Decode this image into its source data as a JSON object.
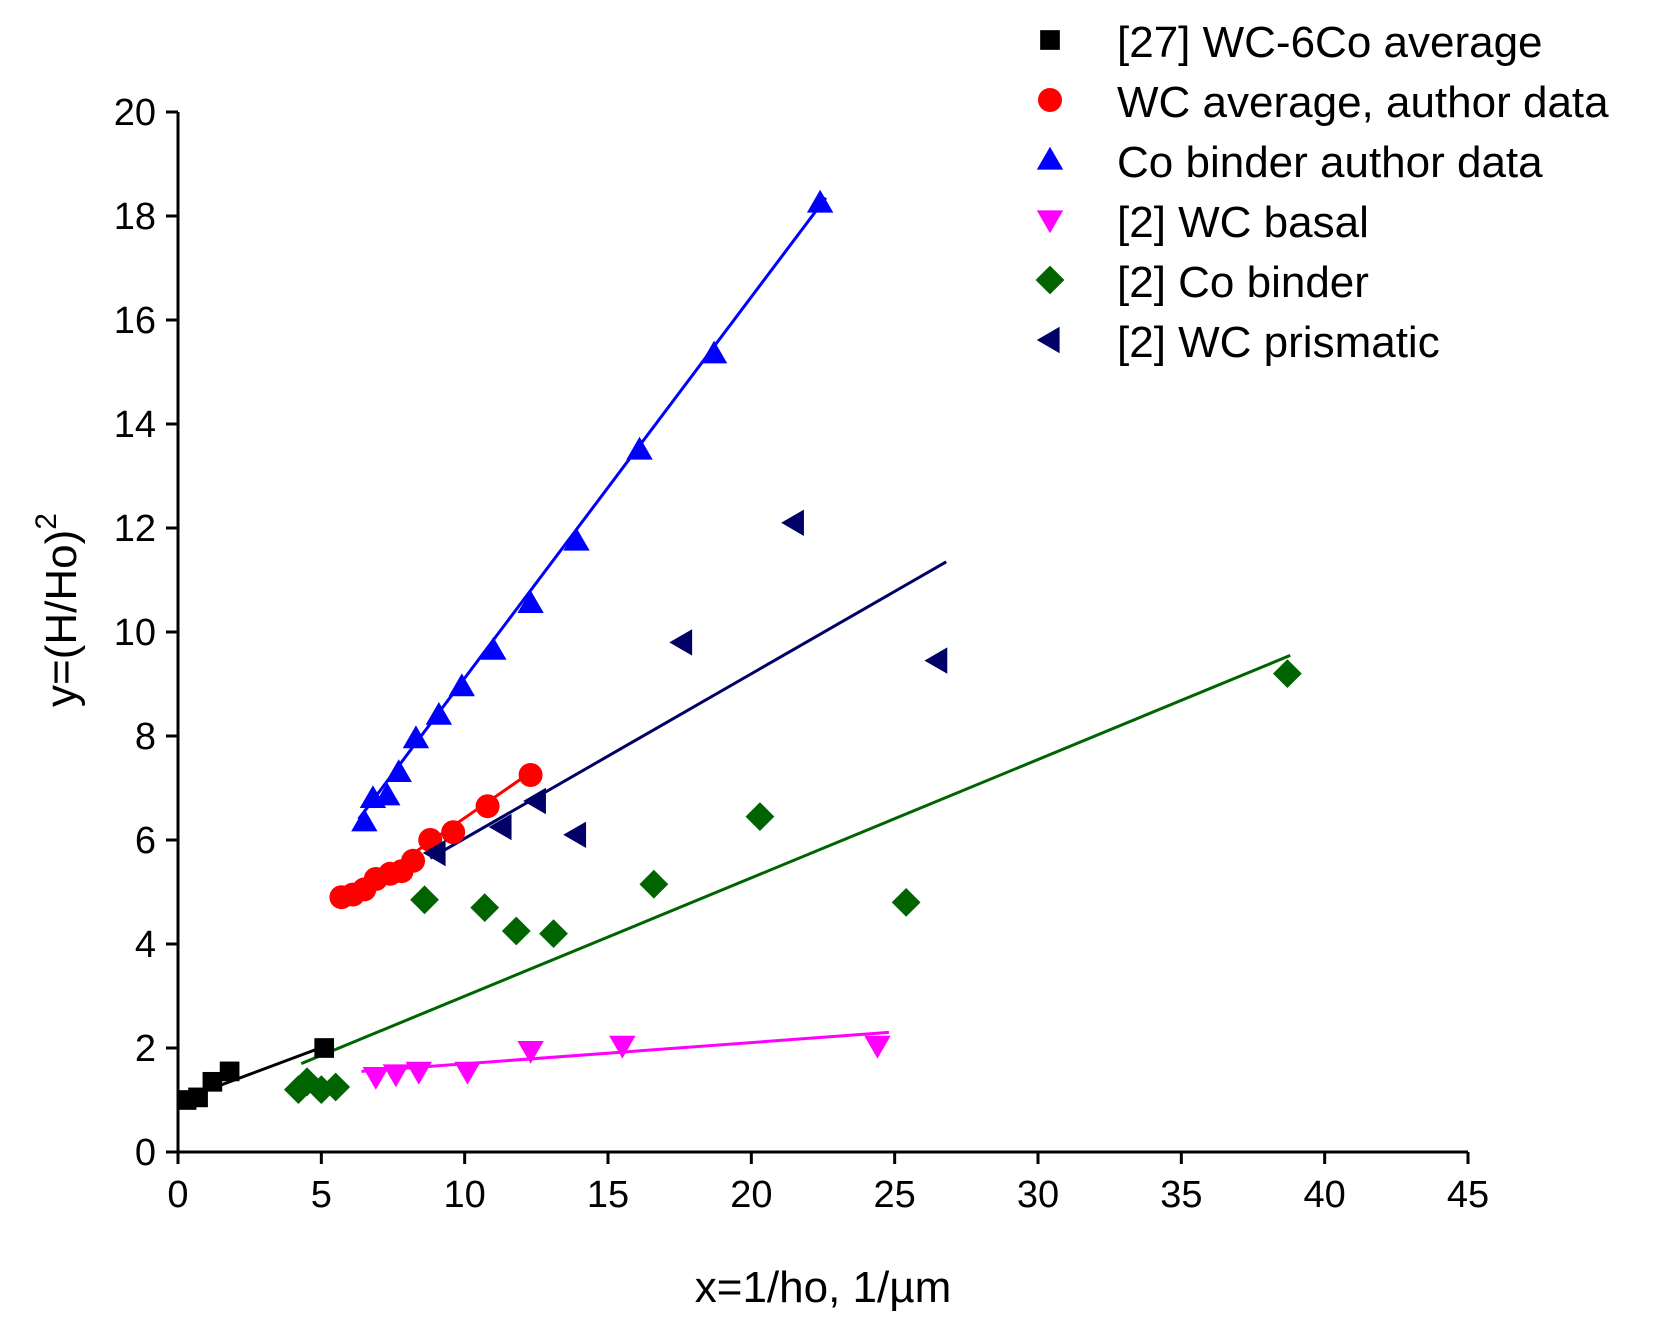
{
  "chart_data": {
    "type": "scatter",
    "title": "",
    "xlabel": "x=1/ho, 1/µm",
    "ylabel_main": "y=(H/Ho)",
    "ylabel_sup": "2",
    "xlim": [
      0,
      45
    ],
    "ylim": [
      0,
      20
    ],
    "xticks": [
      "0",
      "5",
      "10",
      "15",
      "20",
      "25",
      "30",
      "35",
      "40",
      "45"
    ],
    "yticks": [
      "0",
      "2",
      "4",
      "6",
      "8",
      "10",
      "12",
      "14",
      "16",
      "18",
      "20"
    ],
    "grid": false,
    "legend_position": "top-right",
    "series": [
      {
        "name": "[27] WC-6Co average",
        "color": "#000000",
        "marker": "square",
        "points": [
          [
            0.3,
            1.0
          ],
          [
            0.7,
            1.05
          ],
          [
            1.2,
            1.35
          ],
          [
            1.8,
            1.55
          ],
          [
            5.1,
            2.0
          ]
        ],
        "fit": [
          [
            0.0,
            0.98
          ],
          [
            5.2,
            2.05
          ]
        ]
      },
      {
        "name": "WC average, author data",
        "color": "#ff0000",
        "marker": "circle",
        "points": [
          [
            5.7,
            4.9
          ],
          [
            6.1,
            4.95
          ],
          [
            6.5,
            5.05
          ],
          [
            6.9,
            5.25
          ],
          [
            7.4,
            5.35
          ],
          [
            7.8,
            5.4
          ],
          [
            8.2,
            5.6
          ],
          [
            8.8,
            6.0
          ],
          [
            9.6,
            6.15
          ],
          [
            10.8,
            6.65
          ],
          [
            12.3,
            7.25
          ]
        ],
        "fit": [
          [
            5.6,
            4.75
          ],
          [
            12.3,
            7.3
          ]
        ]
      },
      {
        "name": "Co binder author data",
        "color": "#0000ff",
        "marker": "triangle-up",
        "points": [
          [
            6.5,
            6.35
          ],
          [
            6.8,
            6.8
          ],
          [
            7.3,
            6.85
          ],
          [
            7.7,
            7.3
          ],
          [
            8.3,
            7.95
          ],
          [
            9.1,
            8.4
          ],
          [
            9.9,
            8.95
          ],
          [
            11.0,
            9.65
          ],
          [
            12.3,
            10.55
          ],
          [
            13.9,
            11.75
          ],
          [
            16.1,
            13.5
          ],
          [
            18.7,
            15.35
          ],
          [
            22.4,
            18.25
          ]
        ],
        "fit": [
          [
            6.3,
            6.4
          ],
          [
            22.6,
            18.35
          ]
        ]
      },
      {
        "name": "[2] WC basal",
        "color": "#ff00ff",
        "marker": "triangle-down",
        "points": [
          [
            6.9,
            1.45
          ],
          [
            7.6,
            1.5
          ],
          [
            8.4,
            1.55
          ],
          [
            10.1,
            1.55
          ],
          [
            12.3,
            1.95
          ],
          [
            15.5,
            2.05
          ],
          [
            24.4,
            2.05
          ]
        ],
        "fit": [
          [
            6.4,
            1.55
          ],
          [
            24.8,
            2.3
          ]
        ]
      },
      {
        "name": "[2] Co binder",
        "color": "#006400",
        "marker": "diamond",
        "points": [
          [
            4.2,
            1.2
          ],
          [
            4.5,
            1.35
          ],
          [
            5.0,
            1.2
          ],
          [
            5.5,
            1.25
          ],
          [
            8.6,
            4.85
          ],
          [
            10.7,
            4.7
          ],
          [
            11.8,
            4.25
          ],
          [
            13.1,
            4.2
          ],
          [
            16.6,
            5.15
          ],
          [
            20.3,
            6.45
          ],
          [
            25.4,
            4.8
          ],
          [
            38.7,
            9.2
          ]
        ],
        "fit": [
          [
            4.3,
            1.7
          ],
          [
            38.8,
            9.55
          ]
        ]
      },
      {
        "name": "[2] WC prismatic",
        "color": "#000066",
        "marker": "triangle-left",
        "points": [
          [
            9.0,
            5.75
          ],
          [
            11.3,
            6.25
          ],
          [
            12.5,
            6.75
          ],
          [
            13.9,
            6.1
          ],
          [
            17.6,
            9.8
          ],
          [
            21.5,
            12.1
          ],
          [
            26.5,
            9.45
          ]
        ],
        "fit": [
          [
            8.8,
            5.65
          ],
          [
            26.8,
            11.35
          ]
        ]
      }
    ]
  }
}
